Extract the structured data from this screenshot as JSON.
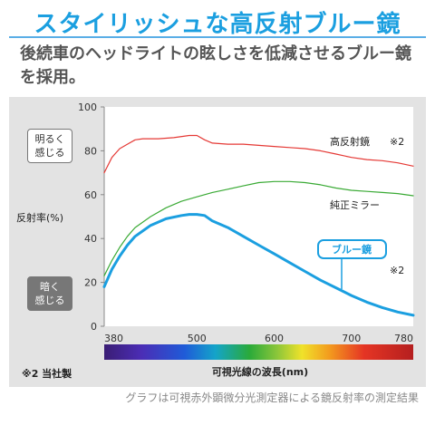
{
  "header": {
    "title": "スタイリッシュな高反射ブルー鏡",
    "subtitle_line1": "後続車のヘッドライトの眩しさを低減させるブルー鏡",
    "subtitle_line2": "を採用。"
  },
  "side": {
    "bright_line1": "明るく",
    "bright_line2": "感じる",
    "dark_line1": "暗く",
    "dark_line2": "感じる",
    "axis_label": "反射率(%)"
  },
  "footnote": "※2 当社製",
  "caption": "グラフは可視赤外顕微分光測定器による鏡反射率の測定結果",
  "colors": {
    "accent": "#1b9fe0",
    "high_reflection": "#e53935",
    "standard": "#3aaa35",
    "blue_mirror": "#1b9fe0"
  },
  "chart_data": {
    "type": "line",
    "xlabel": "可視光線の波長(nm)",
    "ylabel": "反射率(%)",
    "xlim": [
      380,
      780
    ],
    "ylim": [
      0,
      100
    ],
    "x_ticks": [
      380,
      500,
      600,
      700,
      780
    ],
    "y_ticks": [
      0,
      20,
      40,
      60,
      80,
      100
    ],
    "grid": false,
    "spectrum_bar": true,
    "series": [
      {
        "name": "高反射鏡",
        "note": "※2",
        "color": "#e53935",
        "x": [
          380,
          390,
          400,
          410,
          420,
          430,
          450,
          470,
          490,
          500,
          510,
          520,
          540,
          560,
          580,
          600,
          620,
          640,
          660,
          680,
          700,
          720,
          740,
          760,
          780
        ],
        "y": [
          70,
          77,
          81,
          83,
          85,
          85.5,
          85.5,
          86,
          87,
          87,
          85,
          83.5,
          83,
          83,
          82.5,
          82,
          81.5,
          81,
          80,
          78.5,
          77,
          76,
          75.5,
          74.5,
          73
        ]
      },
      {
        "name": "純正ミラー",
        "color": "#3aaa35",
        "x": [
          380,
          390,
          400,
          410,
          420,
          440,
          460,
          480,
          500,
          520,
          540,
          560,
          580,
          600,
          620,
          640,
          660,
          680,
          700,
          720,
          740,
          760,
          780
        ],
        "y": [
          23,
          30,
          36,
          41,
          45,
          50,
          54,
          57,
          59,
          61,
          62.5,
          64,
          65.5,
          66,
          66,
          65.5,
          64.5,
          63,
          62,
          61.5,
          61,
          60.5,
          59.5
        ]
      },
      {
        "name": "ブルー鏡",
        "note": "※2",
        "color": "#1b9fe0",
        "x": [
          380,
          390,
          400,
          410,
          420,
          440,
          460,
          480,
          490,
          500,
          510,
          520,
          540,
          560,
          580,
          600,
          620,
          640,
          660,
          680,
          700,
          720,
          740,
          760,
          780
        ],
        "y": [
          18,
          26,
          32,
          37,
          41,
          46,
          49,
          50.5,
          51,
          51,
          50.5,
          48,
          45,
          41,
          37,
          33,
          29,
          25,
          21,
          17.5,
          14,
          11,
          8.5,
          6.5,
          5
        ]
      }
    ]
  }
}
